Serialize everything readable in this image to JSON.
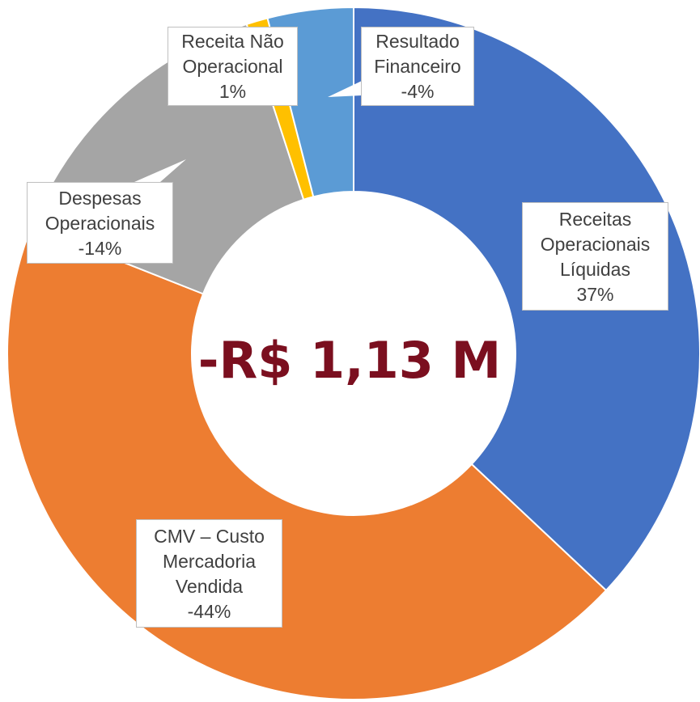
{
  "chart_data": {
    "type": "donut",
    "center_label": "-R$ 1,13 M",
    "categories": [
      "Receitas Operacionais Líquidas",
      "CMV – Custo Mercadoria Vendida",
      "Despesas Operacionais",
      "Receita Não Operacional",
      "Resultado Financeiro"
    ],
    "values": [
      37,
      -44,
      -14,
      1,
      -4
    ],
    "value_labels": [
      "37%",
      "-44%",
      "-14%",
      "1%",
      "-4%"
    ],
    "colors": [
      "#4472c4",
      "#ed7d31",
      "#a5a5a5",
      "#ffc000",
      "#5b9bd5"
    ]
  }
}
